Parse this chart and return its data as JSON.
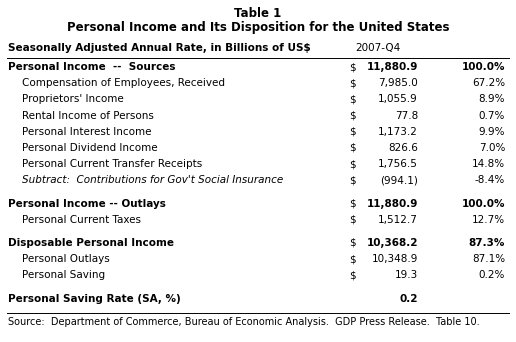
{
  "title1": "Table 1",
  "title2": "Personal Income and Its Disposition for the United States",
  "header_col1": "Seasonally Adjusted Annual Rate, in Billions of US$",
  "header_col2": "2007-Q4",
  "rows": [
    {
      "label": "Personal Income  --  Sources",
      "bold": true,
      "italic": false,
      "indent": 0,
      "dollar": true,
      "value": "11,880.9",
      "pct": "100.0%"
    },
    {
      "label": "Compensation of Employees, Received",
      "bold": false,
      "italic": false,
      "indent": 1,
      "dollar": true,
      "value": "7,985.0",
      "pct": "67.2%"
    },
    {
      "label": "Proprietors' Income",
      "bold": false,
      "italic": false,
      "indent": 1,
      "dollar": true,
      "value": "1,055.9",
      "pct": "8.9%"
    },
    {
      "label": "Rental Income of Persons",
      "bold": false,
      "italic": false,
      "indent": 1,
      "dollar": true,
      "value": "77.8",
      "pct": "0.7%"
    },
    {
      "label": "Personal Interest Income",
      "bold": false,
      "italic": false,
      "indent": 1,
      "dollar": true,
      "value": "1,173.2",
      "pct": "9.9%"
    },
    {
      "label": "Personal Dividend Income",
      "bold": false,
      "italic": false,
      "indent": 1,
      "dollar": true,
      "value": "826.6",
      "pct": "7.0%"
    },
    {
      "label": "Personal Current Transfer Receipts",
      "bold": false,
      "italic": false,
      "indent": 1,
      "dollar": true,
      "value": "1,756.5",
      "pct": "14.8%"
    },
    {
      "label": "Subtract:  Contributions for Gov't Social Insurance",
      "bold": false,
      "italic": true,
      "indent": 1,
      "dollar": true,
      "value": "(994.1)",
      "pct": "-8.4%"
    },
    {
      "label": "Personal Income -- Outlays",
      "bold": true,
      "italic": false,
      "indent": 0,
      "dollar": true,
      "value": "11,880.9",
      "pct": "100.0%"
    },
    {
      "label": "Personal Current Taxes",
      "bold": false,
      "italic": false,
      "indent": 1,
      "dollar": true,
      "value": "1,512.7",
      "pct": "12.7%"
    },
    {
      "label": "Disposable Personal Income",
      "bold": true,
      "italic": false,
      "indent": 0,
      "dollar": true,
      "value": "10,368.2",
      "pct": "87.3%"
    },
    {
      "label": "Personal Outlays",
      "bold": false,
      "italic": false,
      "indent": 1,
      "dollar": true,
      "value": "10,348.9",
      "pct": "87.1%"
    },
    {
      "label": "Personal Saving",
      "bold": false,
      "italic": false,
      "indent": 1,
      "dollar": true,
      "value": "19.3",
      "pct": "0.2%"
    },
    {
      "label": "Personal Saving Rate (SA, %)",
      "bold": true,
      "italic": false,
      "indent": 0,
      "dollar": false,
      "value": "0.2",
      "pct": ""
    }
  ],
  "gaps_before": [
    8,
    10,
    13
  ],
  "source": "Source:  Department of Commerce, Bureau of Economic Analysis.  GDP Press Release.  Table 10.",
  "bg_color": "#ffffff",
  "text_color": "#000000"
}
